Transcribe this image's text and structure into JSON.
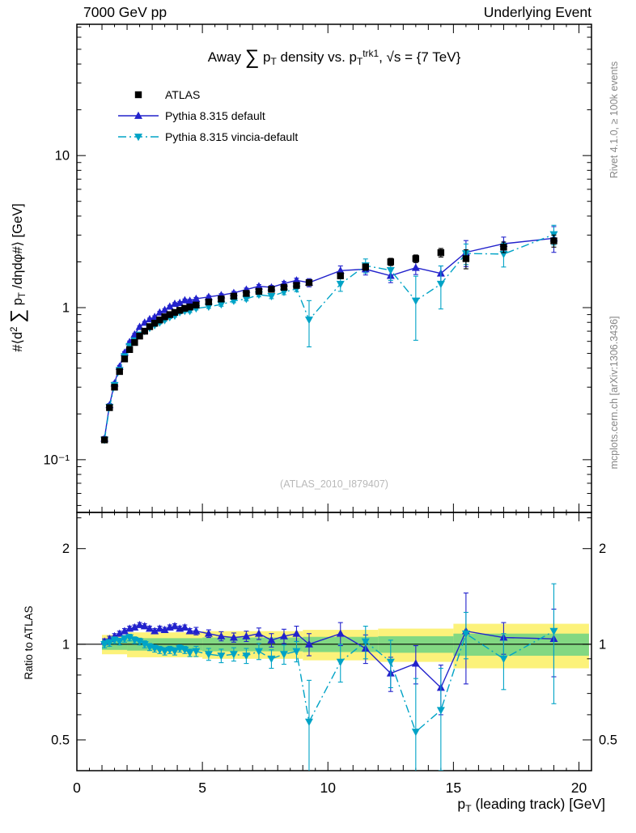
{
  "header": {
    "left": "7000 GeV pp",
    "right": "Underlying Event"
  },
  "side_notes": {
    "top": "Rivet 4.1.0, ≥ 100k events",
    "bottom": "mcplots.cern.ch [arXiv:1306.3436]"
  },
  "watermark": "(ATLAS_2010_I879407)",
  "chart_data": {
    "type": "line",
    "title": "Away ∑ p_{T} density vs. p_{T}^{trk1}, √s = {7 TeV}",
    "xlabel": "p_{T} (leading track) [GeV]",
    "ylabel": "#⟨d^{2} ∑ p_{T} /dηdφ#⟩ [GeV]",
    "ratio_ylabel": "Ratio to ATLAS",
    "legend_position": "top-left",
    "x_axis": {
      "lim": [
        0,
        20.5
      ],
      "scale": "linear",
      "ticks": [
        0,
        5,
        10,
        15,
        20
      ],
      "tick_labels": [
        "0",
        "5",
        "10",
        "15",
        "20"
      ]
    },
    "y_axis_main": {
      "lim": [
        0.045,
        73
      ],
      "scale": "log",
      "labeled_ticks": [
        [
          10,
          "10"
        ],
        [
          1,
          "1"
        ],
        [
          0.1,
          "10⁻¹"
        ]
      ]
    },
    "y_axis_ratio": {
      "lim": [
        0.4,
        2.6
      ],
      "scale": "log",
      "labeled_ticks": [
        [
          2,
          "2"
        ],
        [
          1,
          "1"
        ],
        [
          0.5,
          "0.5"
        ]
      ],
      "minor_ticks": [
        0.4,
        0.6,
        0.7,
        0.8,
        0.9,
        2.5
      ]
    },
    "colors": {
      "atlas": "#000000",
      "pythia_default": "#2222cc",
      "pythia_vincia": "#00a3c6",
      "band_yellow": "#fcf27a",
      "band_green": "#82d882"
    },
    "x": [
      1.1,
      1.3,
      1.5,
      1.7,
      1.9,
      2.1,
      2.3,
      2.5,
      2.7,
      2.9,
      3.1,
      3.3,
      3.5,
      3.7,
      3.9,
      4.1,
      4.3,
      4.5,
      4.75,
      5.25,
      5.75,
      6.25,
      6.75,
      7.25,
      7.75,
      8.25,
      8.75,
      9.25,
      10.5,
      11.5,
      12.5,
      13.5,
      14.5,
      15.5,
      17,
      19
    ],
    "series": [
      {
        "name": "ATLAS",
        "color": "#000000",
        "marker": "square",
        "line": "none",
        "y": [
          0.135,
          0.22,
          0.3,
          0.38,
          0.46,
          0.53,
          0.59,
          0.65,
          0.7,
          0.75,
          0.79,
          0.83,
          0.87,
          0.9,
          0.93,
          0.96,
          0.99,
          1.01,
          1.04,
          1.09,
          1.14,
          1.19,
          1.24,
          1.28,
          1.32,
          1.36,
          1.4,
          1.46,
          1.62,
          1.85,
          2.0,
          2.1,
          2.3,
          2.1,
          2.5,
          2.75
        ],
        "yerr": [
          0.003,
          0.004,
          0.005,
          0.006,
          0.007,
          0.008,
          0.008,
          0.009,
          0.01,
          0.01,
          0.01,
          0.011,
          0.012,
          0.012,
          0.013,
          0.013,
          0.014,
          0.014,
          0.015,
          0.015,
          0.016,
          0.017,
          0.018,
          0.02,
          0.022,
          0.024,
          0.026,
          0.05,
          0.07,
          0.09,
          0.11,
          0.12,
          0.15,
          0.3,
          0.2,
          0.25
        ]
      },
      {
        "name": "Pythia 8.315 default",
        "color": "#2222cc",
        "marker": "triangle-up",
        "line": "solid",
        "y": [
          0.138,
          0.229,
          0.318,
          0.41,
          0.506,
          0.594,
          0.667,
          0.748,
          0.798,
          0.84,
          0.869,
          0.93,
          0.966,
          1.017,
          1.06,
          1.075,
          1.119,
          1.111,
          1.144,
          1.177,
          1.208,
          1.25,
          1.314,
          1.382,
          1.36,
          1.442,
          1.512,
          1.46,
          1.75,
          1.79,
          1.62,
          1.83,
          1.68,
          2.31,
          2.63,
          2.86
        ],
        "yerr": [
          0.004,
          0.005,
          0.006,
          0.007,
          0.008,
          0.009,
          0.01,
          0.011,
          0.012,
          0.013,
          0.014,
          0.015,
          0.016,
          0.017,
          0.018,
          0.019,
          0.02,
          0.021,
          0.022,
          0.024,
          0.026,
          0.028,
          0.03,
          0.035,
          0.04,
          0.045,
          0.05,
          0.09,
          0.13,
          0.15,
          0.16,
          0.18,
          0.2,
          0.45,
          0.28,
          0.55
        ],
        "ratio": [
          1.02,
          1.04,
          1.06,
          1.08,
          1.1,
          1.12,
          1.13,
          1.15,
          1.14,
          1.12,
          1.1,
          1.12,
          1.11,
          1.13,
          1.14,
          1.12,
          1.13,
          1.1,
          1.1,
          1.08,
          1.06,
          1.05,
          1.06,
          1.08,
          1.03,
          1.06,
          1.08,
          1.0,
          1.08,
          0.97,
          0.81,
          0.87,
          0.73,
          1.1,
          1.05,
          1.04
        ],
        "ratio_err": [
          0.02,
          0.02,
          0.02,
          0.02,
          0.02,
          0.02,
          0.02,
          0.02,
          0.02,
          0.02,
          0.02,
          0.02,
          0.02,
          0.02,
          0.02,
          0.02,
          0.02,
          0.02,
          0.03,
          0.03,
          0.035,
          0.035,
          0.04,
          0.045,
          0.05,
          0.055,
          0.06,
          0.08,
          0.09,
          0.1,
          0.1,
          0.12,
          0.13,
          0.35,
          0.12,
          0.25
        ]
      },
      {
        "name": "Pythia 8.315 vincia-default",
        "color": "#00a3c6",
        "marker": "triangle-down",
        "line": "dashdot",
        "y": [
          0.135,
          0.222,
          0.309,
          0.388,
          0.478,
          0.557,
          0.608,
          0.663,
          0.7,
          0.735,
          0.766,
          0.797,
          0.827,
          0.864,
          0.884,
          0.931,
          0.95,
          0.949,
          0.988,
          1.014,
          1.049,
          1.107,
          1.141,
          1.216,
          1.188,
          1.265,
          1.33,
          0.832,
          1.43,
          1.89,
          1.76,
          1.11,
          1.43,
          2.27,
          2.25,
          3.03
        ],
        "yerr": [
          0.004,
          0.005,
          0.006,
          0.007,
          0.008,
          0.009,
          0.01,
          0.011,
          0.012,
          0.013,
          0.014,
          0.015,
          0.016,
          0.017,
          0.018,
          0.019,
          0.02,
          0.021,
          0.022,
          0.025,
          0.028,
          0.03,
          0.033,
          0.038,
          0.042,
          0.048,
          0.055,
          0.28,
          0.15,
          0.2,
          0.25,
          0.5,
          0.45,
          0.35,
          0.4,
          0.45
        ],
        "ratio": [
          1.0,
          1.01,
          1.03,
          1.02,
          1.04,
          1.05,
          1.03,
          1.02,
          1.0,
          0.98,
          0.97,
          0.96,
          0.95,
          0.96,
          0.95,
          0.97,
          0.96,
          0.94,
          0.95,
          0.93,
          0.92,
          0.93,
          0.92,
          0.95,
          0.9,
          0.93,
          0.95,
          0.57,
          0.88,
          1.02,
          0.88,
          0.53,
          0.62,
          1.08,
          0.9,
          1.1
        ],
        "ratio_err": [
          0.025,
          0.025,
          0.025,
          0.025,
          0.025,
          0.025,
          0.025,
          0.025,
          0.025,
          0.025,
          0.025,
          0.025,
          0.025,
          0.025,
          0.025,
          0.025,
          0.025,
          0.025,
          0.035,
          0.04,
          0.045,
          0.045,
          0.05,
          0.055,
          0.06,
          0.065,
          0.07,
          0.2,
          0.12,
          0.12,
          0.15,
          0.25,
          0.22,
          0.18,
          0.18,
          0.45
        ]
      }
    ],
    "ratio_bands": [
      {
        "x0": 1.0,
        "x1": 2.0,
        "yellow": [
          0.93,
          1.07
        ],
        "green": [
          0.96,
          1.04
        ]
      },
      {
        "x0": 2.0,
        "x1": 5.0,
        "yellow": [
          0.91,
          1.09
        ],
        "green": [
          0.955,
          1.045
        ]
      },
      {
        "x0": 5.0,
        "x1": 9.0,
        "yellow": [
          0.9,
          1.1
        ],
        "green": [
          0.95,
          1.05
        ]
      },
      {
        "x0": 9.0,
        "x1": 12.0,
        "yellow": [
          0.89,
          1.11
        ],
        "green": [
          0.945,
          1.055
        ]
      },
      {
        "x0": 12.0,
        "x1": 15.0,
        "yellow": [
          0.88,
          1.12
        ],
        "green": [
          0.94,
          1.06
        ]
      },
      {
        "x0": 15.0,
        "x1": 20.4,
        "yellow": [
          0.84,
          1.16
        ],
        "green": [
          0.92,
          1.08
        ]
      }
    ]
  }
}
